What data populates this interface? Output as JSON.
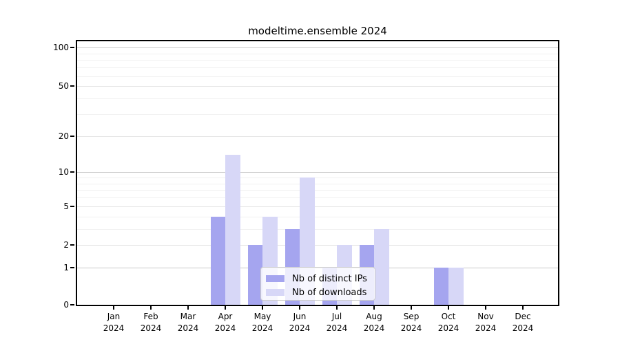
{
  "chart_data": {
    "type": "bar",
    "title": "modeltime.ensemble 2024",
    "categories": [
      "Jan 2024",
      "Feb 2024",
      "Mar 2024",
      "Apr 2024",
      "May 2024",
      "Jun 2024",
      "Jul 2024",
      "Aug 2024",
      "Sep 2024",
      "Oct 2024",
      "Nov 2024",
      "Dec 2024"
    ],
    "series": [
      {
        "name": "Nb of distinct IPs",
        "color": "#a5a5ef",
        "values": [
          0,
          0,
          0,
          4,
          2,
          3,
          1,
          2,
          0,
          1,
          0,
          0
        ]
      },
      {
        "name": "Nb of downloads",
        "color": "#d7d7f7",
        "values": [
          0,
          0,
          0,
          14,
          4,
          9,
          2,
          3,
          0,
          1,
          0,
          0
        ]
      }
    ],
    "yscale": "log1p",
    "ylim": [
      0,
      112
    ],
    "yticks": [
      0,
      1,
      2,
      5,
      10,
      20,
      50,
      100
    ],
    "gridlines": {
      "decade": [
        1,
        10,
        100
      ],
      "labeled": [
        2,
        5,
        20,
        50
      ],
      "minor": [
        3,
        4,
        6,
        7,
        8,
        9,
        30,
        40,
        60,
        70,
        80,
        90
      ]
    },
    "grid": true,
    "xlabel": "",
    "ylabel": "",
    "legend_position": "bottom-center"
  },
  "colors": {
    "axis": "#000000",
    "tick_label": "#000000",
    "grid_decade": "#c9c9c9",
    "grid_labeled": "#e4e4e4",
    "grid_minor": "#f1f1f1",
    "legend_border": "#cccccc",
    "legend_background": "rgba(255,255,255,0.8)"
  }
}
